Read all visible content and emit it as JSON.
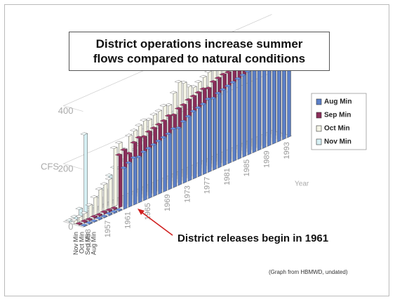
{
  "chart_data": {
    "type": "bar3d",
    "title": "District operations increase summer flows compared to natural conditions",
    "y_label": "CFS",
    "x_label": "Year",
    "annotation": "District releases begin in 1961",
    "source": "(Graph from HBMWD, undated)",
    "categories": [
      "1953",
      null,
      null,
      null,
      "1957",
      null,
      null,
      null,
      "1961",
      null,
      null,
      null,
      "1965",
      null,
      null,
      null,
      "1969",
      null,
      null,
      null,
      "1973",
      null,
      null,
      null,
      "1977",
      null,
      null,
      null,
      "1981",
      null,
      null,
      null,
      "1985",
      null,
      null,
      null,
      "1989",
      null,
      null,
      null,
      "1993",
      null
    ],
    "ylim": [
      0,
      400
    ],
    "yticks": [
      0,
      200,
      400
    ],
    "series": [
      {
        "name": "Aug Min",
        "color": "#5b7fc8",
        "values": [
          2,
          3,
          2,
          4,
          3,
          5,
          4,
          3,
          140,
          150,
          160,
          155,
          165,
          170,
          175,
          180,
          185,
          190,
          200,
          195,
          210,
          220,
          230,
          235,
          240,
          250,
          245,
          255,
          260,
          265,
          270,
          275,
          280,
          285,
          290,
          300,
          295,
          300,
          305,
          300,
          290,
          280
        ]
      },
      {
        "name": "Sep Min",
        "color": "#8b2d5a",
        "values": [
          3,
          4,
          3,
          5,
          4,
          6,
          5,
          4,
          180,
          190,
          170,
          200,
          210,
          205,
          215,
          220,
          225,
          230,
          240,
          235,
          250,
          255,
          265,
          270,
          275,
          280,
          275,
          290,
          295,
          300,
          300,
          305,
          310,
          315,
          320,
          325,
          330,
          325,
          320,
          310,
          300,
          290
        ]
      },
      {
        "name": "Oct Min",
        "color": "#f4f4e6",
        "values": [
          10,
          15,
          20,
          40,
          60,
          80,
          90,
          100,
          200,
          210,
          180,
          220,
          230,
          240,
          250,
          245,
          255,
          260,
          270,
          265,
          300,
          330,
          320,
          300,
          290,
          300,
          310,
          320,
          330,
          325,
          330,
          335,
          340,
          345,
          350,
          355,
          345,
          340,
          330,
          320,
          310,
          300
        ]
      },
      {
        "name": "Nov Min",
        "color": "#d6f0f4",
        "values": [
          5,
          10,
          30,
          280,
          20,
          15,
          40,
          60,
          100,
          120,
          110,
          130,
          140,
          150,
          160,
          170,
          180,
          175,
          190,
          200,
          210,
          220,
          230,
          225,
          235,
          240,
          250,
          245,
          255,
          260,
          265,
          270,
          275,
          280,
          285,
          290,
          295,
          300,
          295,
          290,
          285,
          280
        ]
      }
    ],
    "legend": "right"
  }
}
